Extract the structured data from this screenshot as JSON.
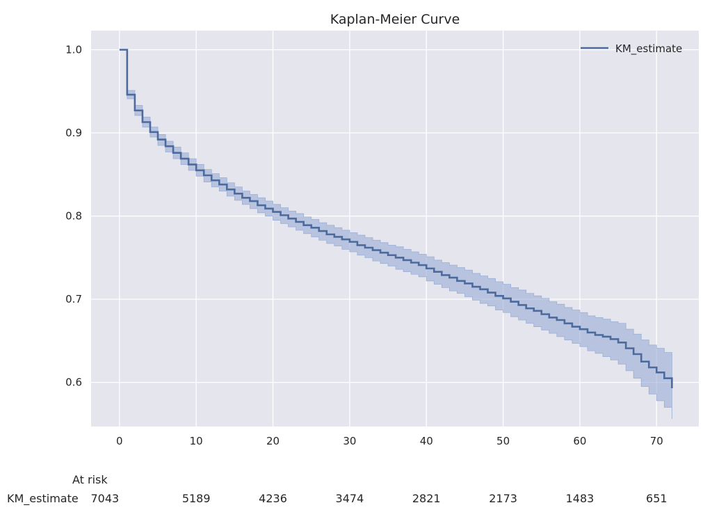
{
  "chart_data": {
    "type": "line",
    "title": "Kaplan-Meier Curve",
    "xlabel": "",
    "ylabel": "",
    "xlim": [
      -3.7,
      75.5
    ],
    "ylim": [
      0.547,
      1.023
    ],
    "xticks": [
      0,
      10,
      20,
      30,
      40,
      50,
      60,
      70
    ],
    "yticks": [
      0.6,
      0.7,
      0.8,
      0.9,
      1.0
    ],
    "ytick_labels": [
      "0.6",
      "0.7",
      "0.8",
      "0.9",
      "1.0"
    ],
    "grid": true,
    "legend_position": "top-right",
    "colors": {
      "background": "#e5e5ee",
      "grid": "#ffffff",
      "line": "#4c6a9c",
      "band": "#9aaed6"
    },
    "series": [
      {
        "name": "KM_estimate",
        "x": [
          0,
          1,
          2,
          3,
          4,
          5,
          6,
          7,
          8,
          9,
          10,
          11,
          12,
          13,
          14,
          15,
          16,
          17,
          18,
          19,
          20,
          21,
          22,
          23,
          24,
          25,
          26,
          27,
          28,
          29,
          30,
          31,
          32,
          33,
          34,
          35,
          36,
          37,
          38,
          39,
          40,
          41,
          42,
          43,
          44,
          45,
          46,
          47,
          48,
          49,
          50,
          51,
          52,
          53,
          54,
          55,
          56,
          57,
          58,
          59,
          60,
          61,
          62,
          63,
          64,
          65,
          66,
          67,
          68,
          69,
          70,
          71,
          72
        ],
        "y": [
          1.0,
          0.946,
          0.927,
          0.913,
          0.901,
          0.892,
          0.884,
          0.876,
          0.869,
          0.862,
          0.855,
          0.849,
          0.843,
          0.838,
          0.832,
          0.827,
          0.822,
          0.818,
          0.813,
          0.809,
          0.805,
          0.801,
          0.797,
          0.793,
          0.789,
          0.786,
          0.782,
          0.778,
          0.775,
          0.772,
          0.769,
          0.765,
          0.762,
          0.759,
          0.756,
          0.753,
          0.75,
          0.747,
          0.744,
          0.741,
          0.737,
          0.733,
          0.729,
          0.726,
          0.722,
          0.719,
          0.715,
          0.712,
          0.708,
          0.704,
          0.701,
          0.697,
          0.693,
          0.689,
          0.686,
          0.682,
          0.678,
          0.675,
          0.671,
          0.667,
          0.664,
          0.66,
          0.657,
          0.655,
          0.652,
          0.648,
          0.641,
          0.634,
          0.625,
          0.618,
          0.612,
          0.605,
          0.593
        ],
        "ci_lower": [
          1.0,
          0.941,
          0.921,
          0.907,
          0.895,
          0.885,
          0.877,
          0.869,
          0.862,
          0.855,
          0.848,
          0.841,
          0.835,
          0.83,
          0.824,
          0.819,
          0.814,
          0.809,
          0.804,
          0.8,
          0.795,
          0.791,
          0.787,
          0.783,
          0.779,
          0.775,
          0.771,
          0.767,
          0.764,
          0.76,
          0.757,
          0.753,
          0.75,
          0.746,
          0.743,
          0.74,
          0.736,
          0.733,
          0.73,
          0.727,
          0.722,
          0.718,
          0.714,
          0.71,
          0.707,
          0.703,
          0.699,
          0.695,
          0.692,
          0.687,
          0.684,
          0.679,
          0.675,
          0.671,
          0.667,
          0.663,
          0.659,
          0.655,
          0.651,
          0.647,
          0.643,
          0.638,
          0.635,
          0.631,
          0.627,
          0.622,
          0.614,
          0.605,
          0.595,
          0.586,
          0.578,
          0.57,
          0.556
        ],
        "ci_upper": [
          1.0,
          0.951,
          0.933,
          0.919,
          0.907,
          0.898,
          0.89,
          0.883,
          0.876,
          0.869,
          0.862,
          0.856,
          0.851,
          0.846,
          0.84,
          0.835,
          0.83,
          0.826,
          0.822,
          0.818,
          0.814,
          0.81,
          0.806,
          0.803,
          0.799,
          0.796,
          0.792,
          0.789,
          0.786,
          0.783,
          0.78,
          0.777,
          0.774,
          0.771,
          0.768,
          0.765,
          0.763,
          0.76,
          0.757,
          0.754,
          0.751,
          0.747,
          0.744,
          0.741,
          0.738,
          0.735,
          0.731,
          0.728,
          0.725,
          0.721,
          0.718,
          0.714,
          0.711,
          0.707,
          0.704,
          0.701,
          0.697,
          0.694,
          0.69,
          0.687,
          0.684,
          0.68,
          0.678,
          0.676,
          0.673,
          0.671,
          0.664,
          0.658,
          0.651,
          0.645,
          0.641,
          0.636,
          0.626
        ]
      }
    ],
    "at_risk": {
      "heading": "At risk",
      "label": "KM_estimate",
      "x": [
        0,
        10,
        20,
        30,
        40,
        50,
        60,
        70
      ],
      "counts": [
        "7043",
        "5189",
        "4236",
        "3474",
        "2821",
        "2173",
        "1483",
        "651"
      ]
    }
  }
}
